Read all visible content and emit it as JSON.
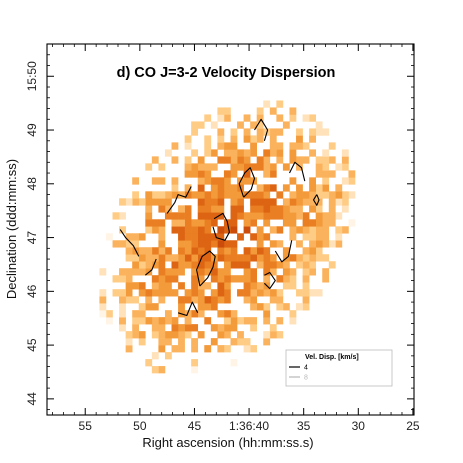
{
  "chart_data": {
    "type": "heatmap",
    "title": "d) CO J=3-2 Velocity Dispersion",
    "xlabel": "Right ascension (hh:mm:ss.s)",
    "ylabel": "Declination (ddd:mm:ss)",
    "x_ticks": [
      "55",
      "50",
      "45",
      "1:36:40",
      "35",
      "30",
      "25"
    ],
    "y_ticks": [
      "44",
      "45",
      "46",
      "47",
      "48",
      "49",
      "15:50"
    ],
    "x_tick_values": [
      55,
      50,
      45,
      40,
      35,
      30,
      25
    ],
    "y_tick_values": [
      44,
      45,
      46,
      47,
      48,
      49,
      50
    ],
    "xlim": [
      58.5,
      24.9
    ],
    "ylim": [
      43.7,
      50.6
    ],
    "cell_size": [
      0.6,
      0.13
    ],
    "colormap": [
      "#fff4e6",
      "#ffe2b9",
      "#ffcc85",
      "#fbb25c",
      "#f39a3a",
      "#e97f22",
      "#dc6413",
      "#cc4c0b"
    ],
    "value_range": [
      0,
      12
    ],
    "legend": {
      "title": "Vel. Disp. [km/s]",
      "entries": [
        {
          "label": "4",
          "color": "#000000"
        },
        {
          "label": "8",
          "color": "#b8b8b8"
        }
      ],
      "position": "bottom-right"
    },
    "contours": [
      {
        "level": 4,
        "color": "#000000",
        "paths": [
          [
            [
              44.5,
              46.1
            ],
            [
              43.8,
              46.25
            ],
            [
              43.3,
              46.45
            ],
            [
              43.1,
              46.65
            ],
            [
              43.6,
              46.75
            ],
            [
              44.3,
              46.65
            ],
            [
              44.8,
              46.4
            ],
            [
              44.5,
              46.1
            ]
          ],
          [
            [
              43.2,
              47.35
            ],
            [
              42.4,
              47.45
            ],
            [
              42.0,
              47.3
            ],
            [
              41.8,
              47.1
            ],
            [
              42.2,
              46.95
            ],
            [
              43.0,
              47.0
            ],
            [
              43.3,
              47.2
            ]
          ],
          [
            [
              40.5,
              47.75
            ],
            [
              39.8,
              47.9
            ],
            [
              39.5,
              48.1
            ],
            [
              39.9,
              48.3
            ],
            [
              40.4,
              48.2
            ],
            [
              40.9,
              48.0
            ],
            [
              40.5,
              47.75
            ]
          ],
          [
            [
              47.5,
              47.45
            ],
            [
              46.8,
              47.65
            ],
            [
              46.5,
              47.8
            ],
            [
              45.8,
              47.75
            ],
            [
              45.3,
              47.95
            ]
          ],
          [
            [
              51.8,
              47.15
            ],
            [
              51.3,
              47.0
            ],
            [
              50.6,
              46.85
            ],
            [
              50.1,
              46.65
            ]
          ],
          [
            [
              49.5,
              46.3
            ],
            [
              48.9,
              46.4
            ],
            [
              48.5,
              46.6
            ]
          ],
          [
            [
              46.5,
              45.6
            ],
            [
              45.7,
              45.55
            ],
            [
              45.2,
              45.8
            ],
            [
              44.7,
              45.6
            ]
          ],
          [
            [
              37.6,
              46.75
            ],
            [
              37.0,
              46.55
            ],
            [
              36.4,
              46.65
            ],
            [
              36.1,
              46.95
            ]
          ],
          [
            [
              38.6,
              46.3
            ],
            [
              38.1,
              46.35
            ],
            [
              37.6,
              46.2
            ],
            [
              38.1,
              46.05
            ],
            [
              38.6,
              46.15
            ]
          ],
          [
            [
              36.3,
              48.2
            ],
            [
              35.8,
              48.4
            ],
            [
              35.2,
              48.3
            ],
            [
              34.9,
              48.05
            ]
          ],
          [
            [
              39.5,
              49.0
            ],
            [
              38.9,
              49.2
            ],
            [
              38.3,
              49.0
            ],
            [
              38.6,
              48.8
            ]
          ],
          [
            [
              33.8,
              47.8
            ],
            [
              34.1,
              47.7
            ],
            [
              33.8,
              47.6
            ],
            [
              33.6,
              47.7
            ],
            [
              33.8,
              47.8
            ]
          ]
        ]
      }
    ]
  }
}
